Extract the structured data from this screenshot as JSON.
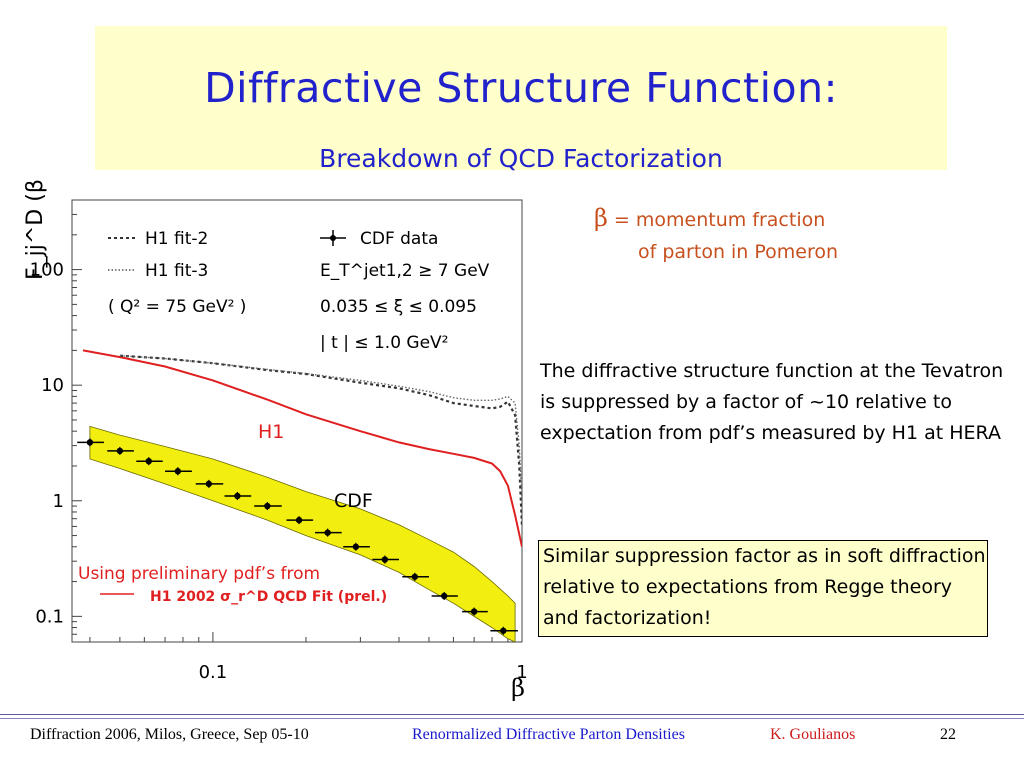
{
  "slide": {
    "title": "Diffractive Structure Function:",
    "subtitle": "Breakdown of QCD Factorization",
    "beta_definition": {
      "symbol": "β",
      "line1": "= momentum fraction",
      "line2": "of parton in Pomeron"
    },
    "paragraph": "The diffractive structure function at the Tevatron is suppressed by  a factor of ~10 relative to expectation from pdf’s measured by H1 at HERA",
    "boxed_text": "Similar suppression factor as in soft diffraction relative to expectations from Regge theory and factorization!",
    "footer": {
      "event": "Diffraction 2006, Milos, Greece, Sep 05-10",
      "talk": "Renormalized Diffractive Parton Densities",
      "author": "K. Goulianos",
      "page": "22"
    }
  },
  "colors": {
    "title": "#2222cc",
    "title_bg": "#ffffcc",
    "accent_orange": "#c8501e",
    "h1_curve": "#e02020",
    "band": "#f2ee10",
    "footer_blue": "#1a1acc",
    "footer_red": "#cc1a1a"
  },
  "chart_data": {
    "type": "line",
    "xscale": "log",
    "yscale": "log",
    "xlim": [
      0.035,
      1.0
    ],
    "ylim": [
      0.06,
      400
    ],
    "xlabel": "β",
    "ylabel": "F_jj^D (β)",
    "xticks": [
      {
        "value": 0.1,
        "label": "0.1"
      },
      {
        "value": 1,
        "label": "1"
      }
    ],
    "yticks": [
      {
        "value": 0.1,
        "label": "0.1"
      },
      {
        "value": 1,
        "label": "1"
      },
      {
        "value": 10,
        "label": "10"
      },
      {
        "value": 100,
        "label": "100"
      }
    ],
    "legend": {
      "h1_fit2": "H1 fit-2",
      "h1_fit3": "H1 fit-3",
      "q2": "( Q² = 75 GeV² )",
      "cdf_data": "CDF data",
      "et_cut": "E_T^jet1,2 ≥ 7 GeV",
      "xi_cut": "0.035 ≤ ξ ≤ 0.095",
      "t_cut": "| t | ≤ 1.0 GeV²"
    },
    "annotations": {
      "h1": "H1",
      "cdf": "CDF",
      "prelim": "Using preliminary pdf’s from",
      "h1_2002": "H1 2002 σ_r^D QCD Fit (prel.)"
    },
    "series": [
      {
        "name": "H1 2002 σ_r^D QCD Fit (prel.)",
        "style": "solid-red",
        "x": [
          0.038,
          0.05,
          0.07,
          0.1,
          0.15,
          0.2,
          0.3,
          0.4,
          0.5,
          0.6,
          0.7,
          0.8,
          0.85,
          0.9,
          0.95,
          1.0
        ],
        "y": [
          20,
          17.5,
          14.5,
          11,
          7.5,
          5.6,
          4.0,
          3.2,
          2.8,
          2.55,
          2.35,
          2.1,
          1.8,
          1.35,
          0.75,
          0.4
        ]
      },
      {
        "name": "H1 fit-2",
        "style": "dotted",
        "x": [
          0.05,
          0.07,
          0.1,
          0.15,
          0.2,
          0.3,
          0.4,
          0.5,
          0.6,
          0.7,
          0.8,
          0.85,
          0.9,
          0.95,
          0.98,
          1.0
        ],
        "y": [
          18,
          17,
          15.5,
          13.5,
          12.5,
          10.5,
          9.4,
          8.2,
          7.0,
          6.6,
          6.3,
          6.5,
          7.2,
          5.5,
          2.0,
          0.6
        ]
      },
      {
        "name": "H1 fit-3",
        "style": "dotted-fine",
        "x": [
          0.05,
          0.07,
          0.1,
          0.15,
          0.2,
          0.3,
          0.4,
          0.5,
          0.6,
          0.7,
          0.8,
          0.85,
          0.9,
          0.95,
          0.98,
          1.0
        ],
        "y": [
          18,
          17,
          15.5,
          13.7,
          12.6,
          11,
          9.8,
          8.8,
          7.8,
          7.4,
          7.4,
          7.6,
          8.0,
          7.0,
          3.0,
          1.0
        ]
      },
      {
        "name": "CDF data",
        "style": "points-errors",
        "x": [
          0.04,
          0.05,
          0.062,
          0.077,
          0.097,
          0.12,
          0.15,
          0.19,
          0.235,
          0.29,
          0.36,
          0.45,
          0.56,
          0.7,
          0.87
        ],
        "y": [
          3.2,
          2.7,
          2.2,
          1.8,
          1.4,
          1.1,
          0.9,
          0.68,
          0.53,
          0.4,
          0.31,
          0.22,
          0.15,
          0.11,
          0.075
        ],
        "xerr_lo": [
          0.0036,
          0.0045,
          0.0055,
          0.007,
          0.009,
          0.011,
          0.014,
          0.017,
          0.021,
          0.026,
          0.032,
          0.04,
          0.05,
          0.06,
          0.08
        ],
        "xerr_hi": [
          0.0044,
          0.0055,
          0.0068,
          0.0085,
          0.011,
          0.013,
          0.017,
          0.021,
          0.026,
          0.032,
          0.04,
          0.05,
          0.06,
          0.075,
          0.1
        ]
      }
    ],
    "band": {
      "x": [
        0.04,
        0.05,
        0.07,
        0.1,
        0.15,
        0.2,
        0.3,
        0.4,
        0.5,
        0.6,
        0.7,
        0.8,
        0.9,
        0.95
      ],
      "y_lo": [
        2.3,
        1.9,
        1.4,
        1.0,
        0.68,
        0.5,
        0.34,
        0.24,
        0.17,
        0.13,
        0.1,
        0.08,
        0.064,
        0.06
      ],
      "y_hi": [
        4.4,
        3.7,
        2.95,
        2.3,
        1.6,
        1.2,
        0.85,
        0.62,
        0.46,
        0.36,
        0.27,
        0.2,
        0.15,
        0.13
      ]
    }
  }
}
